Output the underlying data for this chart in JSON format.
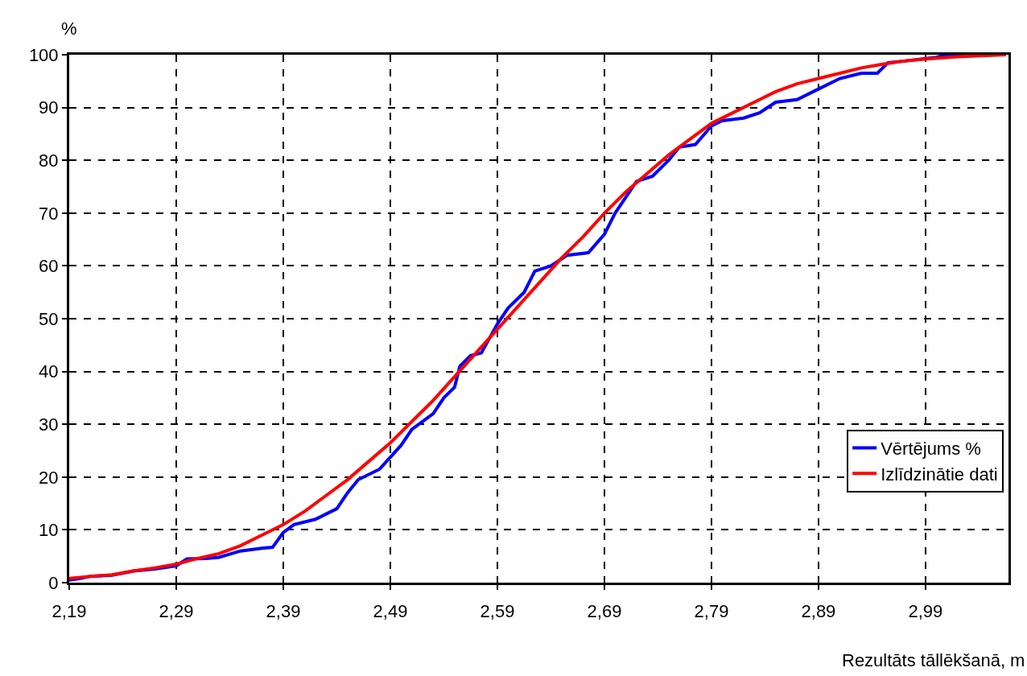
{
  "chart_data": {
    "type": "line",
    "xlabel": "Rezultāts tāllēkšanā, m",
    "ylabel": "%",
    "xlim": [
      2.19,
      3.0675
    ],
    "xticks": [
      {
        "value": 2.19,
        "label": "2,19"
      },
      {
        "value": 2.29,
        "label": "2,29"
      },
      {
        "value": 2.39,
        "label": "2,39"
      },
      {
        "value": 2.49,
        "label": "2,49"
      },
      {
        "value": 2.59,
        "label": "2,59"
      },
      {
        "value": 2.69,
        "label": "2,69"
      },
      {
        "value": 2.79,
        "label": "2,79"
      },
      {
        "value": 2.89,
        "label": "2,89"
      },
      {
        "value": 2.99,
        "label": "2,99"
      }
    ],
    "ylim": [
      0,
      100
    ],
    "yticks": [
      0,
      10,
      20,
      30,
      40,
      50,
      60,
      70,
      80,
      90,
      100
    ],
    "grid": true,
    "legend": "bottom right",
    "line_style": "solid",
    "marker": "none",
    "series": [
      {
        "name": "Vērtējums %",
        "color": "#0000ff",
        "x": [
          2.19,
          2.2,
          2.21,
          2.23,
          2.25,
          2.27,
          2.29,
          2.3,
          2.32,
          2.33,
          2.35,
          2.37,
          2.38,
          2.39,
          2.4,
          2.42,
          2.44,
          2.45,
          2.46,
          2.48,
          2.5,
          2.51,
          2.53,
          2.54,
          2.55,
          2.555,
          2.565,
          2.575,
          2.59,
          2.6,
          2.615,
          2.625,
          2.64,
          2.655,
          2.675,
          2.69,
          2.7,
          2.71,
          2.72,
          2.735,
          2.75,
          2.76,
          2.775,
          2.79,
          2.8,
          2.82,
          2.835,
          2.85,
          2.87,
          2.89,
          2.91,
          2.93,
          2.945,
          2.955,
          2.97,
          3.0,
          3.01,
          3.065
        ],
        "values": [
          0.5,
          0.8,
          1.2,
          1.4,
          2.2,
          2.6,
          3.2,
          4.5,
          4.6,
          4.8,
          6,
          6.5,
          6.7,
          9.5,
          11,
          12,
          14,
          17,
          19.5,
          21.5,
          26,
          29,
          32,
          35,
          37,
          41,
          43,
          43.5,
          49,
          52,
          55,
          59,
          60,
          62,
          62.5,
          66,
          70,
          73,
          76,
          77,
          80,
          82.5,
          83,
          86.5,
          87.5,
          88,
          89,
          91,
          91.5,
          93.5,
          95.5,
          96.5,
          96.5,
          98.5,
          98.8,
          99.5,
          100,
          100
        ]
      },
      {
        "name": "Izlīdzinātie dati",
        "color": "#ff0000",
        "x": [
          2.19,
          2.21,
          2.23,
          2.25,
          2.27,
          2.29,
          2.31,
          2.33,
          2.35,
          2.37,
          2.39,
          2.41,
          2.43,
          2.45,
          2.47,
          2.49,
          2.51,
          2.53,
          2.55,
          2.57,
          2.59,
          2.61,
          2.63,
          2.65,
          2.67,
          2.69,
          2.71,
          2.73,
          2.75,
          2.77,
          2.79,
          2.81,
          2.83,
          2.85,
          2.87,
          2.89,
          2.91,
          2.93,
          2.95,
          2.97,
          2.99,
          3.02,
          3.065
        ],
        "values": [
          0.8,
          1.2,
          1.5,
          2.2,
          2.8,
          3.5,
          4.6,
          5.5,
          7,
          9,
          11,
          13.5,
          16.5,
          19.5,
          23,
          26.5,
          30.5,
          34.5,
          39,
          43.5,
          48,
          52.5,
          57,
          61.5,
          65.5,
          70,
          74,
          77.5,
          81,
          84,
          87,
          89,
          91,
          93,
          94.5,
          95.5,
          96.5,
          97.5,
          98.2,
          98.8,
          99.2,
          99.6,
          100
        ]
      }
    ]
  }
}
